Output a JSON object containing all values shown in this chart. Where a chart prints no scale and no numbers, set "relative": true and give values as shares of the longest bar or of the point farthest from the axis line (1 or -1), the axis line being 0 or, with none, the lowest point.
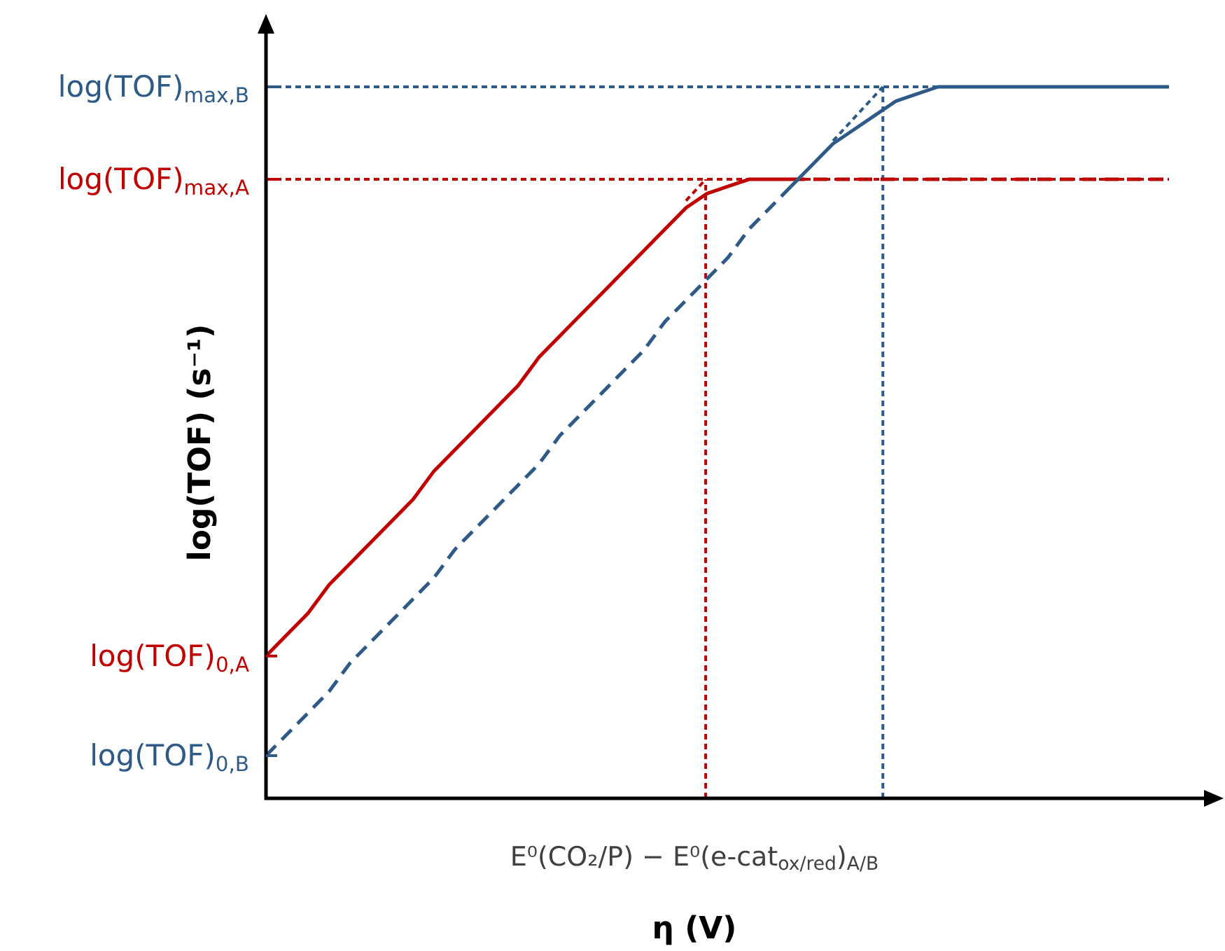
{
  "chart_data": {
    "type": "line",
    "relative": true,
    "xlabel": "η (V)",
    "ylabel": "log(TOF) (s⁻¹)",
    "categories": [
      null,
      null,
      null,
      null,
      null,
      null,
      null,
      null,
      null,
      null,
      null,
      null,
      null,
      null,
      null,
      null,
      null,
      null,
      null,
      null,
      null,
      null,
      null,
      null,
      null,
      null,
      null,
      null,
      null,
      null,
      null,
      null,
      null,
      null,
      null,
      null,
      null,
      null,
      null,
      null,
      null,
      null,
      null,
      null
    ],
    "series": [
      {
        "color": "#c00000",
        "line_style": "solid",
        "values": [
          0.2,
          0.23,
          0.26,
          0.3,
          0.33,
          0.36,
          0.39,
          0.42,
          0.46,
          0.49,
          0.52,
          0.55,
          0.58,
          0.62,
          0.65,
          0.68,
          0.71,
          0.74,
          0.77,
          0.8,
          0.83,
          0.85,
          0.86,
          0.87,
          0.87,
          0.87,
          null,
          null,
          null,
          null,
          null,
          null,
          null,
          null,
          null,
          null,
          null,
          null,
          null,
          null,
          null,
          null,
          null,
          null
        ]
      },
      {
        "color": "#c00000",
        "line_style": "dashed",
        "values": [
          null,
          null,
          null,
          null,
          null,
          null,
          null,
          null,
          null,
          null,
          null,
          null,
          null,
          null,
          null,
          null,
          null,
          null,
          null,
          null,
          null,
          null,
          null,
          null,
          null,
          0.87,
          0.87,
          0.87,
          0.87,
          0.87,
          0.87,
          0.87,
          0.87,
          0.87,
          0.87,
          0.87,
          0.87,
          0.87,
          0.87,
          0.87,
          0.87,
          0.87,
          0.87,
          0.87
        ]
      },
      {
        "color": "#2e5a87",
        "line_style": "dashed",
        "values": [
          0.06,
          0.09,
          0.12,
          0.15,
          0.19,
          0.22,
          0.25,
          0.28,
          0.31,
          0.35,
          0.38,
          0.41,
          0.44,
          0.47,
          0.51,
          0.54,
          0.57,
          0.6,
          0.63,
          0.67,
          0.7,
          0.73,
          0.76,
          0.8,
          0.83,
          0.86,
          null,
          null,
          null,
          null,
          null,
          null,
          null,
          null,
          null,
          null,
          null,
          null,
          null,
          null,
          null,
          null,
          null,
          null
        ]
      },
      {
        "color": "#2e5a87",
        "line_style": "solid",
        "values": [
          null,
          null,
          null,
          null,
          null,
          null,
          null,
          null,
          null,
          null,
          null,
          null,
          null,
          null,
          null,
          null,
          null,
          null,
          null,
          null,
          null,
          null,
          null,
          null,
          null,
          0.86,
          0.89,
          0.92,
          0.94,
          0.96,
          0.98,
          0.99,
          1,
          1,
          1,
          1,
          1,
          1,
          1,
          1,
          1,
          1,
          1,
          1
        ]
      }
    ],
    "ref_lines": [
      {
        "axis": "y",
        "value": 1,
        "label": "log(TOF)$_{max,B}$",
        "color": "#2e5a87",
        "line_style": "dotted"
      },
      {
        "axis": "y",
        "value": 0.87,
        "label": "log(TOF)$_{max,A}$",
        "color": "#c00000",
        "line_style": "dotted"
      }
    ],
    "annotations": [
      "log(TOF)$_{0,A}$",
      "log(TOF)$_{0,B}$",
      "E⁰(CO₂/P) − E⁰(e-cat$_{ox/red}$)$_{A/B}$"
    ]
  }
}
